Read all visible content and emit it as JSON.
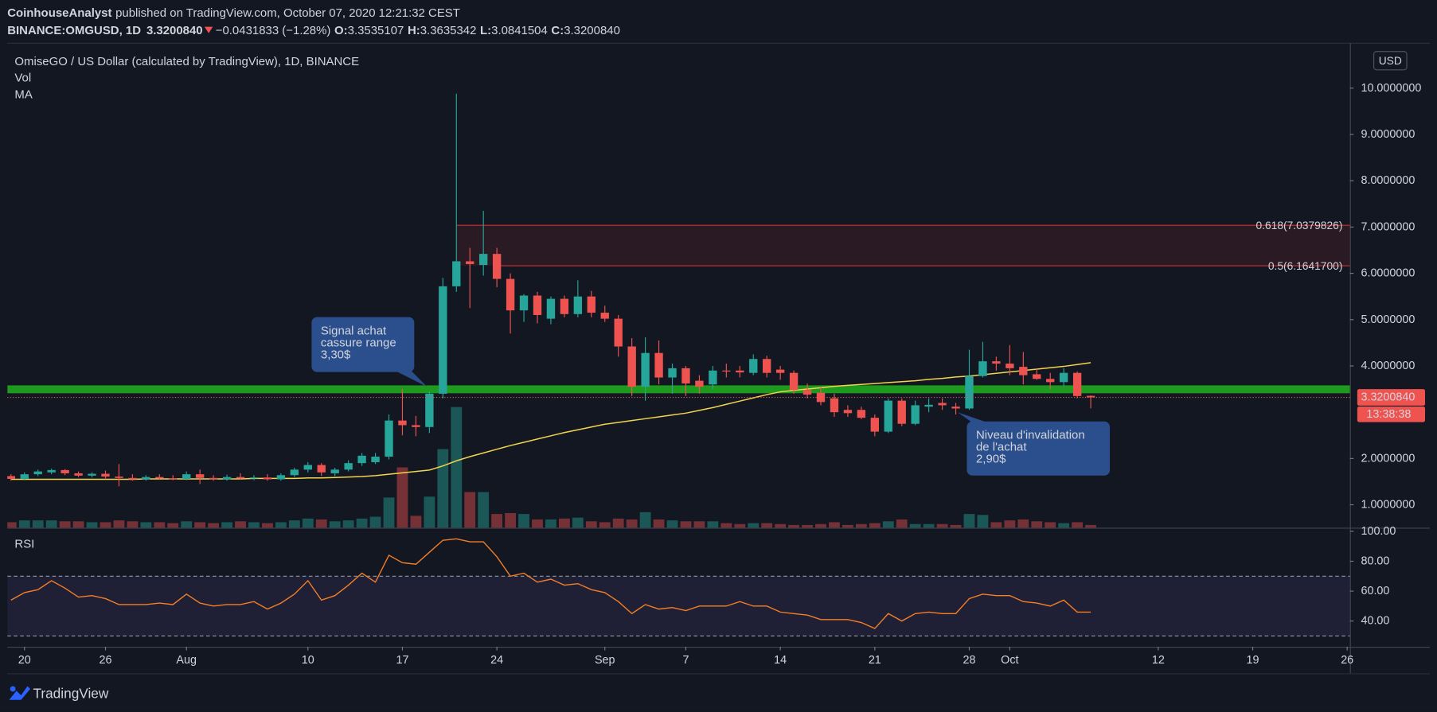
{
  "header": {
    "author": "CoinhouseAnalyst",
    "published": "published on TradingView.com, October 07, 2020 12:21:32 CEST",
    "symbol": "BINANCE:OMGUSD, 1D",
    "last": "3.3200840",
    "change": "−0.0431833 (−1.28%)",
    "ohlc": [
      {
        "key": "O:",
        "value": "3.3535107"
      },
      {
        "key": "H:",
        "value": "3.3635342"
      },
      {
        "key": "L:",
        "value": "3.0841504"
      },
      {
        "key": "C:",
        "value": "3.3200840"
      }
    ]
  },
  "footer": {
    "brand": "TradingView"
  },
  "chart_data": [
    {
      "type": "candlestick",
      "title": "OmiseGO / US Dollar (calculated by TradingView), 1D, BINANCE",
      "currency": "USD",
      "up_color": "#26a69a",
      "down_color": "#ef5350",
      "x": [
        "07-19",
        "07-20",
        "07-21",
        "07-22",
        "07-23",
        "07-24",
        "07-25",
        "07-26",
        "07-27",
        "07-28",
        "07-29",
        "07-30",
        "07-31",
        "08-01",
        "08-02",
        "08-03",
        "08-04",
        "08-05",
        "08-06",
        "08-07",
        "08-08",
        "08-09",
        "08-10",
        "08-11",
        "08-12",
        "08-13",
        "08-14",
        "08-15",
        "08-16",
        "08-17",
        "08-18",
        "08-19",
        "08-20",
        "08-21",
        "08-22",
        "08-23",
        "08-24",
        "08-25",
        "08-26",
        "08-27",
        "08-28",
        "08-29",
        "08-30",
        "08-31",
        "09-01",
        "09-02",
        "09-03",
        "09-04",
        "09-05",
        "09-06",
        "09-07",
        "09-08",
        "09-09",
        "09-10",
        "09-11",
        "09-12",
        "09-13",
        "09-14",
        "09-15",
        "09-16",
        "09-17",
        "09-18",
        "09-19",
        "09-20",
        "09-21",
        "09-22",
        "09-23",
        "09-24",
        "09-25",
        "09-26",
        "09-27",
        "09-28",
        "09-29",
        "09-30",
        "10-01",
        "10-02",
        "10-03",
        "10-04",
        "10-05",
        "10-06",
        "10-07"
      ],
      "ohlc": [
        [
          1.62,
          1.66,
          1.52,
          1.56
        ],
        [
          1.56,
          1.7,
          1.53,
          1.66
        ],
        [
          1.66,
          1.76,
          1.62,
          1.72
        ],
        [
          1.7,
          1.78,
          1.66,
          1.75
        ],
        [
          1.75,
          1.77,
          1.64,
          1.68
        ],
        [
          1.68,
          1.72,
          1.6,
          1.63
        ],
        [
          1.63,
          1.7,
          1.59,
          1.67
        ],
        [
          1.67,
          1.74,
          1.55,
          1.61
        ],
        [
          1.61,
          1.88,
          1.4,
          1.58
        ],
        [
          1.58,
          1.66,
          1.52,
          1.55
        ],
        [
          1.55,
          1.64,
          1.52,
          1.6
        ],
        [
          1.6,
          1.66,
          1.54,
          1.57
        ],
        [
          1.57,
          1.64,
          1.53,
          1.56
        ],
        [
          1.56,
          1.72,
          1.53,
          1.66
        ],
        [
          1.66,
          1.76,
          1.45,
          1.58
        ],
        [
          1.58,
          1.64,
          1.52,
          1.55
        ],
        [
          1.55,
          1.65,
          1.52,
          1.6
        ],
        [
          1.6,
          1.68,
          1.55,
          1.57
        ],
        [
          1.57,
          1.64,
          1.53,
          1.59
        ],
        [
          1.59,
          1.66,
          1.52,
          1.55
        ],
        [
          1.55,
          1.68,
          1.52,
          1.64
        ],
        [
          1.64,
          1.8,
          1.6,
          1.76
        ],
        [
          1.76,
          1.92,
          1.7,
          1.86
        ],
        [
          1.86,
          1.9,
          1.62,
          1.7
        ],
        [
          1.68,
          1.8,
          1.62,
          1.76
        ],
        [
          1.76,
          1.96,
          1.72,
          1.9
        ],
        [
          1.9,
          2.12,
          1.84,
          2.06
        ],
        [
          1.92,
          2.12,
          1.88,
          2.04
        ],
        [
          2.04,
          2.95,
          1.98,
          2.82
        ],
        [
          2.82,
          3.5,
          2.5,
          2.72
        ],
        [
          2.72,
          2.92,
          2.48,
          2.68
        ],
        [
          2.68,
          3.45,
          2.55,
          3.4
        ],
        [
          3.4,
          5.9,
          3.3,
          5.72
        ],
        [
          5.72,
          9.88,
          5.6,
          6.26
        ],
        [
          6.26,
          6.55,
          5.25,
          6.2
        ],
        [
          6.18,
          7.35,
          5.95,
          6.42
        ],
        [
          6.42,
          6.55,
          5.7,
          5.88
        ],
        [
          5.88,
          6.0,
          4.7,
          5.2
        ],
        [
          5.2,
          5.55,
          4.95,
          5.52
        ],
        [
          5.52,
          5.6,
          4.92,
          5.1
        ],
        [
          5.02,
          5.5,
          4.9,
          5.45
        ],
        [
          5.45,
          5.52,
          5.05,
          5.12
        ],
        [
          5.12,
          5.85,
          5.05,
          5.5
        ],
        [
          5.5,
          5.62,
          5.05,
          5.15
        ],
        [
          5.15,
          5.3,
          4.95,
          5.02
        ],
        [
          5.02,
          5.1,
          4.2,
          4.42
        ],
        [
          4.42,
          4.6,
          3.35,
          3.55
        ],
        [
          3.55,
          4.62,
          3.25,
          4.28
        ],
        [
          4.28,
          4.55,
          3.6,
          3.75
        ],
        [
          3.75,
          4.05,
          3.4,
          3.95
        ],
        [
          3.95,
          4.0,
          3.35,
          3.62
        ],
        [
          3.68,
          3.8,
          3.4,
          3.55
        ],
        [
          3.6,
          4.0,
          3.5,
          3.9
        ],
        [
          3.9,
          4.05,
          3.75,
          3.88
        ],
        [
          3.9,
          4.0,
          3.75,
          3.86
        ],
        [
          3.85,
          4.25,
          3.8,
          4.15
        ],
        [
          4.15,
          4.22,
          3.75,
          3.85
        ],
        [
          3.92,
          4.0,
          3.7,
          3.85
        ],
        [
          3.85,
          3.9,
          3.4,
          3.48
        ],
        [
          3.48,
          3.62,
          3.3,
          3.38
        ],
        [
          3.42,
          3.55,
          3.15,
          3.22
        ],
        [
          3.3,
          3.4,
          2.9,
          3.0
        ],
        [
          3.05,
          3.15,
          2.9,
          2.98
        ],
        [
          3.05,
          3.12,
          2.85,
          2.88
        ],
        [
          2.88,
          2.95,
          2.48,
          2.58
        ],
        [
          2.58,
          3.3,
          2.55,
          3.25
        ],
        [
          3.25,
          3.3,
          2.7,
          2.75
        ],
        [
          2.75,
          3.25,
          2.72,
          3.15
        ],
        [
          3.12,
          3.3,
          3.0,
          3.16
        ],
        [
          3.2,
          3.3,
          3.05,
          3.15
        ],
        [
          3.12,
          3.2,
          2.95,
          3.08
        ],
        [
          3.08,
          4.35,
          3.05,
          3.78
        ],
        [
          3.78,
          4.52,
          3.75,
          4.1
        ],
        [
          4.1,
          4.2,
          3.9,
          4.05
        ],
        [
          4.05,
          4.45,
          3.8,
          3.95
        ],
        [
          3.98,
          4.3,
          3.6,
          3.8
        ],
        [
          3.82,
          3.95,
          3.7,
          3.72
        ],
        [
          3.72,
          3.85,
          3.5,
          3.65
        ],
        [
          3.65,
          3.95,
          3.55,
          3.85
        ],
        [
          3.85,
          3.88,
          3.3,
          3.35
        ],
        [
          3.3535107,
          3.3635342,
          3.0841504,
          3.320084
        ]
      ],
      "volume": {
        "name": "Vol",
        "values": [
          6,
          8,
          8,
          8,
          7,
          7,
          6,
          6,
          8,
          7,
          6,
          6,
          5,
          7,
          6,
          5,
          6,
          7,
          6,
          5,
          6,
          8,
          10,
          9,
          7,
          8,
          10,
          12,
          33,
          66,
          13,
          34,
          86,
          132,
          39,
          39,
          15,
          16,
          15,
          9,
          9,
          10,
          11,
          7,
          6,
          10,
          9,
          17,
          9,
          8,
          7,
          7,
          7,
          5,
          4,
          5,
          5,
          4,
          3,
          3,
          4,
          6,
          3,
          4,
          5,
          7,
          9,
          4,
          4,
          4,
          3,
          15,
          14,
          6,
          8,
          9,
          7,
          6,
          5,
          6,
          3
        ]
      },
      "volume_lim": [
        0,
        530
      ],
      "ma": {
        "name": "MA",
        "color": "#f2d44e",
        "values": [
          1.55,
          1.55,
          1.55,
          1.55,
          1.55,
          1.55,
          1.55,
          1.55,
          1.55,
          1.55,
          1.56,
          1.56,
          1.56,
          1.56,
          1.56,
          1.56,
          1.56,
          1.56,
          1.57,
          1.57,
          1.57,
          1.57,
          1.58,
          1.58,
          1.59,
          1.6,
          1.61,
          1.63,
          1.66,
          1.69,
          1.72,
          1.75,
          1.84,
          1.95,
          2.04,
          2.12,
          2.2,
          2.28,
          2.35,
          2.42,
          2.49,
          2.56,
          2.62,
          2.68,
          2.74,
          2.78,
          2.82,
          2.86,
          2.9,
          2.94,
          2.98,
          3.04,
          3.1,
          3.17,
          3.24,
          3.31,
          3.38,
          3.44,
          3.47,
          3.5,
          3.53,
          3.56,
          3.58,
          3.6,
          3.62,
          3.64,
          3.66,
          3.68,
          3.71,
          3.73,
          3.76,
          3.78,
          3.81,
          3.84,
          3.87,
          3.9,
          3.93,
          3.96,
          3.99,
          4.03,
          4.07
        ]
      },
      "ylim": [
        0.505,
        10.97
      ],
      "yticks": [
        {
          "value": 1,
          "label": "1.0000000"
        },
        {
          "value": 2,
          "label": "2.0000000"
        },
        {
          "value": 4,
          "label": "4.0000000"
        },
        {
          "value": 5,
          "label": "5.0000000"
        },
        {
          "value": 6,
          "label": "6.0000000"
        },
        {
          "value": 7,
          "label": "7.0000000"
        },
        {
          "value": 8,
          "label": "8.0000000"
        },
        {
          "value": 9,
          "label": "9.0000000"
        },
        {
          "value": 10,
          "label": "10.0000000"
        }
      ],
      "xlim": [
        "07-19",
        "10-26"
      ],
      "xticks": [
        {
          "value": "07-20",
          "label": "20"
        },
        {
          "value": "07-26",
          "label": "26"
        },
        {
          "value": "08-01",
          "label": "Aug"
        },
        {
          "value": "08-10",
          "label": "10"
        },
        {
          "value": "08-17",
          "label": "17"
        },
        {
          "value": "08-24",
          "label": "24"
        },
        {
          "value": "09-01",
          "label": "Sep"
        },
        {
          "value": "09-07",
          "label": "7"
        },
        {
          "value": "09-14",
          "label": "14"
        },
        {
          "value": "09-21",
          "label": "21"
        },
        {
          "value": "09-28",
          "label": "28"
        },
        {
          "value": "10-01",
          "label": "Oct"
        },
        {
          "value": "10-12",
          "label": "12"
        },
        {
          "value": "10-19",
          "label": "19"
        },
        {
          "value": "10-26",
          "label": "26"
        }
      ],
      "levels": [
        {
          "label": "0.618(7.0379826)",
          "value": 7.0379826,
          "from": "08-21"
        },
        {
          "label": "0.5(6.1641700)",
          "value": 6.16417,
          "from": "08-24"
        }
      ],
      "level_color": "#d32f2f",
      "level_fill": "#d32f2f",
      "zone": {
        "from": 3.41,
        "to": 3.58,
        "color": "#1e9b1e"
      },
      "last_price": {
        "value": 3.320084,
        "label": "3.3200840",
        "countdown": "13:38:38"
      },
      "annotations": [
        {
          "lines": [
            "Signal achat",
            "cassure range",
            "3,30$"
          ]
        },
        {
          "lines": [
            "Niveau d'invalidation",
            "de l'achat",
            "2,90$"
          ]
        }
      ],
      "annotation_color": "#2b4f8c"
    },
    {
      "type": "line",
      "name": "RSI",
      "color": "#f57f26",
      "x": [
        "07-19",
        "07-20",
        "07-21",
        "07-22",
        "07-23",
        "07-24",
        "07-25",
        "07-26",
        "07-27",
        "07-28",
        "07-29",
        "07-30",
        "07-31",
        "08-01",
        "08-02",
        "08-03",
        "08-04",
        "08-05",
        "08-06",
        "08-07",
        "08-08",
        "08-09",
        "08-10",
        "08-11",
        "08-12",
        "08-13",
        "08-14",
        "08-15",
        "08-16",
        "08-17",
        "08-18",
        "08-19",
        "08-20",
        "08-21",
        "08-22",
        "08-23",
        "08-24",
        "08-25",
        "08-26",
        "08-27",
        "08-28",
        "08-29",
        "08-30",
        "08-31",
        "09-01",
        "09-02",
        "09-03",
        "09-04",
        "09-05",
        "09-06",
        "09-07",
        "09-08",
        "09-09",
        "09-10",
        "09-11",
        "09-12",
        "09-13",
        "09-14",
        "09-15",
        "09-16",
        "09-17",
        "09-18",
        "09-19",
        "09-20",
        "09-21",
        "09-22",
        "09-23",
        "09-24",
        "09-25",
        "09-26",
        "09-27",
        "09-28",
        "09-29",
        "09-30",
        "10-01",
        "10-02",
        "10-03",
        "10-04",
        "10-05",
        "10-06",
        "10-07"
      ],
      "values": [
        54,
        59,
        61,
        67,
        62,
        56,
        57,
        55,
        51,
        51,
        51,
        52,
        51,
        58,
        52,
        50,
        51,
        51,
        53,
        48,
        52,
        58,
        67,
        54,
        57,
        64,
        72,
        66,
        84,
        79,
        78,
        86,
        94,
        95,
        93,
        93,
        83,
        70,
        72,
        66,
        68,
        64,
        65,
        61,
        59,
        53,
        45,
        51,
        48,
        49,
        47,
        50,
        50,
        50,
        53,
        50,
        50,
        46,
        45,
        44,
        41,
        41,
        41,
        39,
        35,
        45,
        40,
        45,
        46,
        45,
        45,
        55,
        58,
        57,
        57,
        53,
        52,
        50,
        54,
        46,
        46
      ],
      "ylim": [
        22.8,
        101.8
      ],
      "yticks": [
        {
          "value": 100,
          "label": "100.00"
        },
        {
          "value": 80,
          "label": "80.00"
        },
        {
          "value": 60,
          "label": "60.00"
        },
        {
          "value": 40,
          "label": "40.00"
        }
      ],
      "bands": [
        30,
        70
      ],
      "band_fill": "#7e57c2"
    }
  ]
}
